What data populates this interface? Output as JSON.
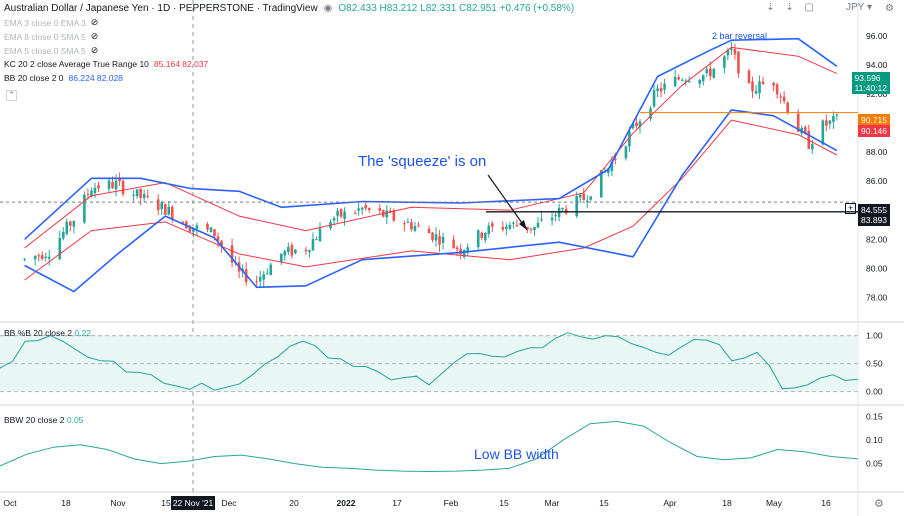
{
  "header": {
    "symbol": "Australian Dollar / Japanese Yen · 1D · PEPPERSTONE · TradingView",
    "ohlc": "O82.433 H83.212 L82.331 C82.951 +0.476 (+0.58%)",
    "currency": "JPY"
  },
  "indicators": [
    {
      "label": "EMA 3 close 0 EMA 3",
      "values": "",
      "faint": true
    },
    {
      "label": "EMA 8 close 0 SMA 5",
      "values": "",
      "faint": true
    },
    {
      "label": "EMA 5 close 0 SMA 5",
      "values": "",
      "faint": true
    },
    {
      "label": "KC 20 2 close Average True Range 10",
      "values": "85.164 82.037",
      "color": "#f23645"
    },
    {
      "label": "BB 20 close 2 0",
      "values": "86.224 82.028",
      "color": "#2962ff"
    }
  ],
  "annotations": {
    "squeeze": "The 'squeeze' is on",
    "reversal": "2 bar reversal",
    "low_width": "Low BB width"
  },
  "price_tags": {
    "last": "93.596",
    "countdown": "11:40:12",
    "kc_mid": "90.715",
    "bb_mid": "90.146",
    "level_a": "84.555",
    "level_b": "83.893"
  },
  "pane_labels": {
    "pctb": "BB %B 20 close 2",
    "pctb_val": "0.22",
    "bbw": "BBW 20 close 2",
    "bbw_val": "0.05"
  },
  "x_axis": {
    "labels": [
      "Oct",
      "18",
      "Nov",
      "15",
      "22 Nov '21",
      "Dec",
      "20",
      "2022",
      "17",
      "Feb",
      "15",
      "Mar",
      "15",
      "Apr",
      "18",
      "May",
      "16"
    ],
    "highlighted": "22 Nov '21"
  },
  "chart_data": [
    {
      "type": "candlestick",
      "title": "Australian Dollar / Japanese Yen · 1D · PEPPERSTONE",
      "y_ticks": [
        78,
        80,
        82,
        84,
        86,
        88,
        90,
        92,
        94,
        96
      ],
      "ylim": [
        77,
        97.5
      ],
      "x_range": [
        "2021-10-01",
        "2022-05-20"
      ],
      "close_path": [
        {
          "date": "2021-10-01",
          "close": 80.6
        },
        {
          "date": "2021-10-08",
          "close": 81.2
        },
        {
          "date": "2021-10-15",
          "close": 83.4
        },
        {
          "date": "2021-10-20",
          "close": 85.6
        },
        {
          "date": "2021-10-27",
          "close": 85.8
        },
        {
          "date": "2021-11-03",
          "close": 84.9
        },
        {
          "date": "2021-11-10",
          "close": 84.1
        },
        {
          "date": "2021-11-17",
          "close": 82.9
        },
        {
          "date": "2021-11-24",
          "close": 82.4
        },
        {
          "date": "2021-12-01",
          "close": 79.6
        },
        {
          "date": "2021-12-06",
          "close": 79.2
        },
        {
          "date": "2021-12-13",
          "close": 81.0
        },
        {
          "date": "2021-12-20",
          "close": 81.4
        },
        {
          "date": "2021-12-27",
          "close": 83.4
        },
        {
          "date": "2022-01-05",
          "close": 84.1
        },
        {
          "date": "2022-01-12",
          "close": 83.6
        },
        {
          "date": "2022-01-19",
          "close": 83.0
        },
        {
          "date": "2022-01-26",
          "close": 82.2
        },
        {
          "date": "2022-02-02",
          "close": 81.3
        },
        {
          "date": "2022-02-09",
          "close": 82.6
        },
        {
          "date": "2022-02-16",
          "close": 83.0
        },
        {
          "date": "2022-02-23",
          "close": 82.8
        },
        {
          "date": "2022-03-02",
          "close": 83.9
        },
        {
          "date": "2022-03-09",
          "close": 84.8
        },
        {
          "date": "2022-03-16",
          "close": 86.9
        },
        {
          "date": "2022-03-23",
          "close": 89.6
        },
        {
          "date": "2022-03-30",
          "close": 92.2
        },
        {
          "date": "2022-04-06",
          "close": 93.2
        },
        {
          "date": "2022-04-13",
          "close": 93.3
        },
        {
          "date": "2022-04-20",
          "close": 94.9
        },
        {
          "date": "2022-04-25",
          "close": 92.3
        },
        {
          "date": "2022-05-02",
          "close": 92.9
        },
        {
          "date": "2022-05-09",
          "close": 89.6
        },
        {
          "date": "2022-05-12",
          "close": 88.6
        },
        {
          "date": "2022-05-16",
          "close": 89.8
        },
        {
          "date": "2022-05-20",
          "close": 90.2
        }
      ],
      "bollinger_upper": [
        {
          "date": "2021-10-01",
          "v": 82.0
        },
        {
          "date": "2021-10-20",
          "v": 86.2
        },
        {
          "date": "2021-11-03",
          "v": 86.2
        },
        {
          "date": "2021-11-17",
          "v": 85.5
        },
        {
          "date": "2021-12-01",
          "v": 85.3
        },
        {
          "date": "2021-12-13",
          "v": 84.2
        },
        {
          "date": "2022-01-05",
          "v": 84.6
        },
        {
          "date": "2022-02-02",
          "v": 84.5
        },
        {
          "date": "2022-03-02",
          "v": 84.8
        },
        {
          "date": "2022-03-16",
          "v": 86.8
        },
        {
          "date": "2022-03-30",
          "v": 93.2
        },
        {
          "date": "2022-04-13",
          "v": 94.9
        },
        {
          "date": "2022-04-20",
          "v": 95.7
        },
        {
          "date": "2022-05-09",
          "v": 95.8
        },
        {
          "date": "2022-05-20",
          "v": 93.9
        }
      ],
      "bollinger_lower": [
        {
          "date": "2021-10-01",
          "v": 80.2
        },
        {
          "date": "2021-10-15",
          "v": 78.4
        },
        {
          "date": "2021-10-27",
          "v": 80.9
        },
        {
          "date": "2021-11-10",
          "v": 83.6
        },
        {
          "date": "2021-11-24",
          "v": 82.1
        },
        {
          "date": "2021-12-06",
          "v": 78.7
        },
        {
          "date": "2021-12-20",
          "v": 78.8
        },
        {
          "date": "2022-01-05",
          "v": 80.6
        },
        {
          "date": "2022-02-02",
          "v": 81.1
        },
        {
          "date": "2022-03-02",
          "v": 81.8
        },
        {
          "date": "2022-03-23",
          "v": 80.8
        },
        {
          "date": "2022-04-06",
          "v": 86.4
        },
        {
          "date": "2022-04-20",
          "v": 90.9
        },
        {
          "date": "2022-05-02",
          "v": 90.5
        },
        {
          "date": "2022-05-20",
          "v": 88.1
        }
      ],
      "keltner_upper": [
        {
          "date": "2021-10-01",
          "v": 81.4
        },
        {
          "date": "2021-10-20",
          "v": 85.0
        },
        {
          "date": "2021-11-10",
          "v": 85.9
        },
        {
          "date": "2021-12-01",
          "v": 83.6
        },
        {
          "date": "2021-12-20",
          "v": 82.6
        },
        {
          "date": "2022-01-19",
          "v": 84.2
        },
        {
          "date": "2022-02-16",
          "v": 84.0
        },
        {
          "date": "2022-03-09",
          "v": 85.2
        },
        {
          "date": "2022-03-23",
          "v": 89.3
        },
        {
          "date": "2022-04-06",
          "v": 92.6
        },
        {
          "date": "2022-04-20",
          "v": 95.2
        },
        {
          "date": "2022-05-09",
          "v": 94.6
        },
        {
          "date": "2022-05-20",
          "v": 93.4
        }
      ],
      "keltner_lower": [
        {
          "date": "2021-10-01",
          "v": 79.2
        },
        {
          "date": "2021-10-20",
          "v": 82.6
        },
        {
          "date": "2021-11-10",
          "v": 83.2
        },
        {
          "date": "2021-12-01",
          "v": 81.0
        },
        {
          "date": "2021-12-20",
          "v": 80.1
        },
        {
          "date": "2022-01-19",
          "v": 81.2
        },
        {
          "date": "2022-02-16",
          "v": 80.6
        },
        {
          "date": "2022-03-09",
          "v": 81.4
        },
        {
          "date": "2022-03-23",
          "v": 82.9
        },
        {
          "date": "2022-04-06",
          "v": 86.2
        },
        {
          "date": "2022-04-20",
          "v": 90.2
        },
        {
          "date": "2022-05-09",
          "v": 89.2
        },
        {
          "date": "2022-05-20",
          "v": 87.8
        }
      ],
      "horizontal_levels": [
        90.715,
        84.555,
        83.893
      ]
    },
    {
      "type": "line",
      "title": "BB %B 20 close 2",
      "y_ticks": [
        0.0,
        0.5,
        1.0
      ],
      "ylim": [
        -0.15,
        1.1
      ],
      "band": [
        0,
        1
      ],
      "series": [
        {
          "name": "BB %B",
          "values": [
            0.42,
            0.9,
            1.0,
            0.75,
            0.55,
            0.35,
            0.3,
            0.1,
            0.15,
            0.08,
            0.3,
            0.62,
            0.9,
            0.6,
            0.45,
            0.35,
            0.25,
            0.12,
            0.52,
            0.68,
            0.62,
            0.78,
            0.95,
            0.98,
            1.0,
            0.86,
            0.7,
            0.8,
            0.92,
            0.55,
            0.7,
            0.05,
            0.12,
            0.3,
            0.22
          ]
        }
      ]
    },
    {
      "type": "line",
      "title": "BBW 20 close 2",
      "y_ticks": [
        0.05,
        0.1,
        0.15
      ],
      "ylim": [
        0.0,
        0.16
      ],
      "series": [
        {
          "name": "BBW",
          "values": [
            0.045,
            0.07,
            0.085,
            0.09,
            0.08,
            0.06,
            0.05,
            0.055,
            0.065,
            0.068,
            0.06,
            0.05,
            0.042,
            0.04,
            0.036,
            0.034,
            0.033,
            0.034,
            0.036,
            0.04,
            0.06,
            0.1,
            0.135,
            0.14,
            0.13,
            0.095,
            0.065,
            0.058,
            0.062,
            0.08,
            0.075,
            0.065,
            0.06
          ]
        }
      ]
    }
  ]
}
